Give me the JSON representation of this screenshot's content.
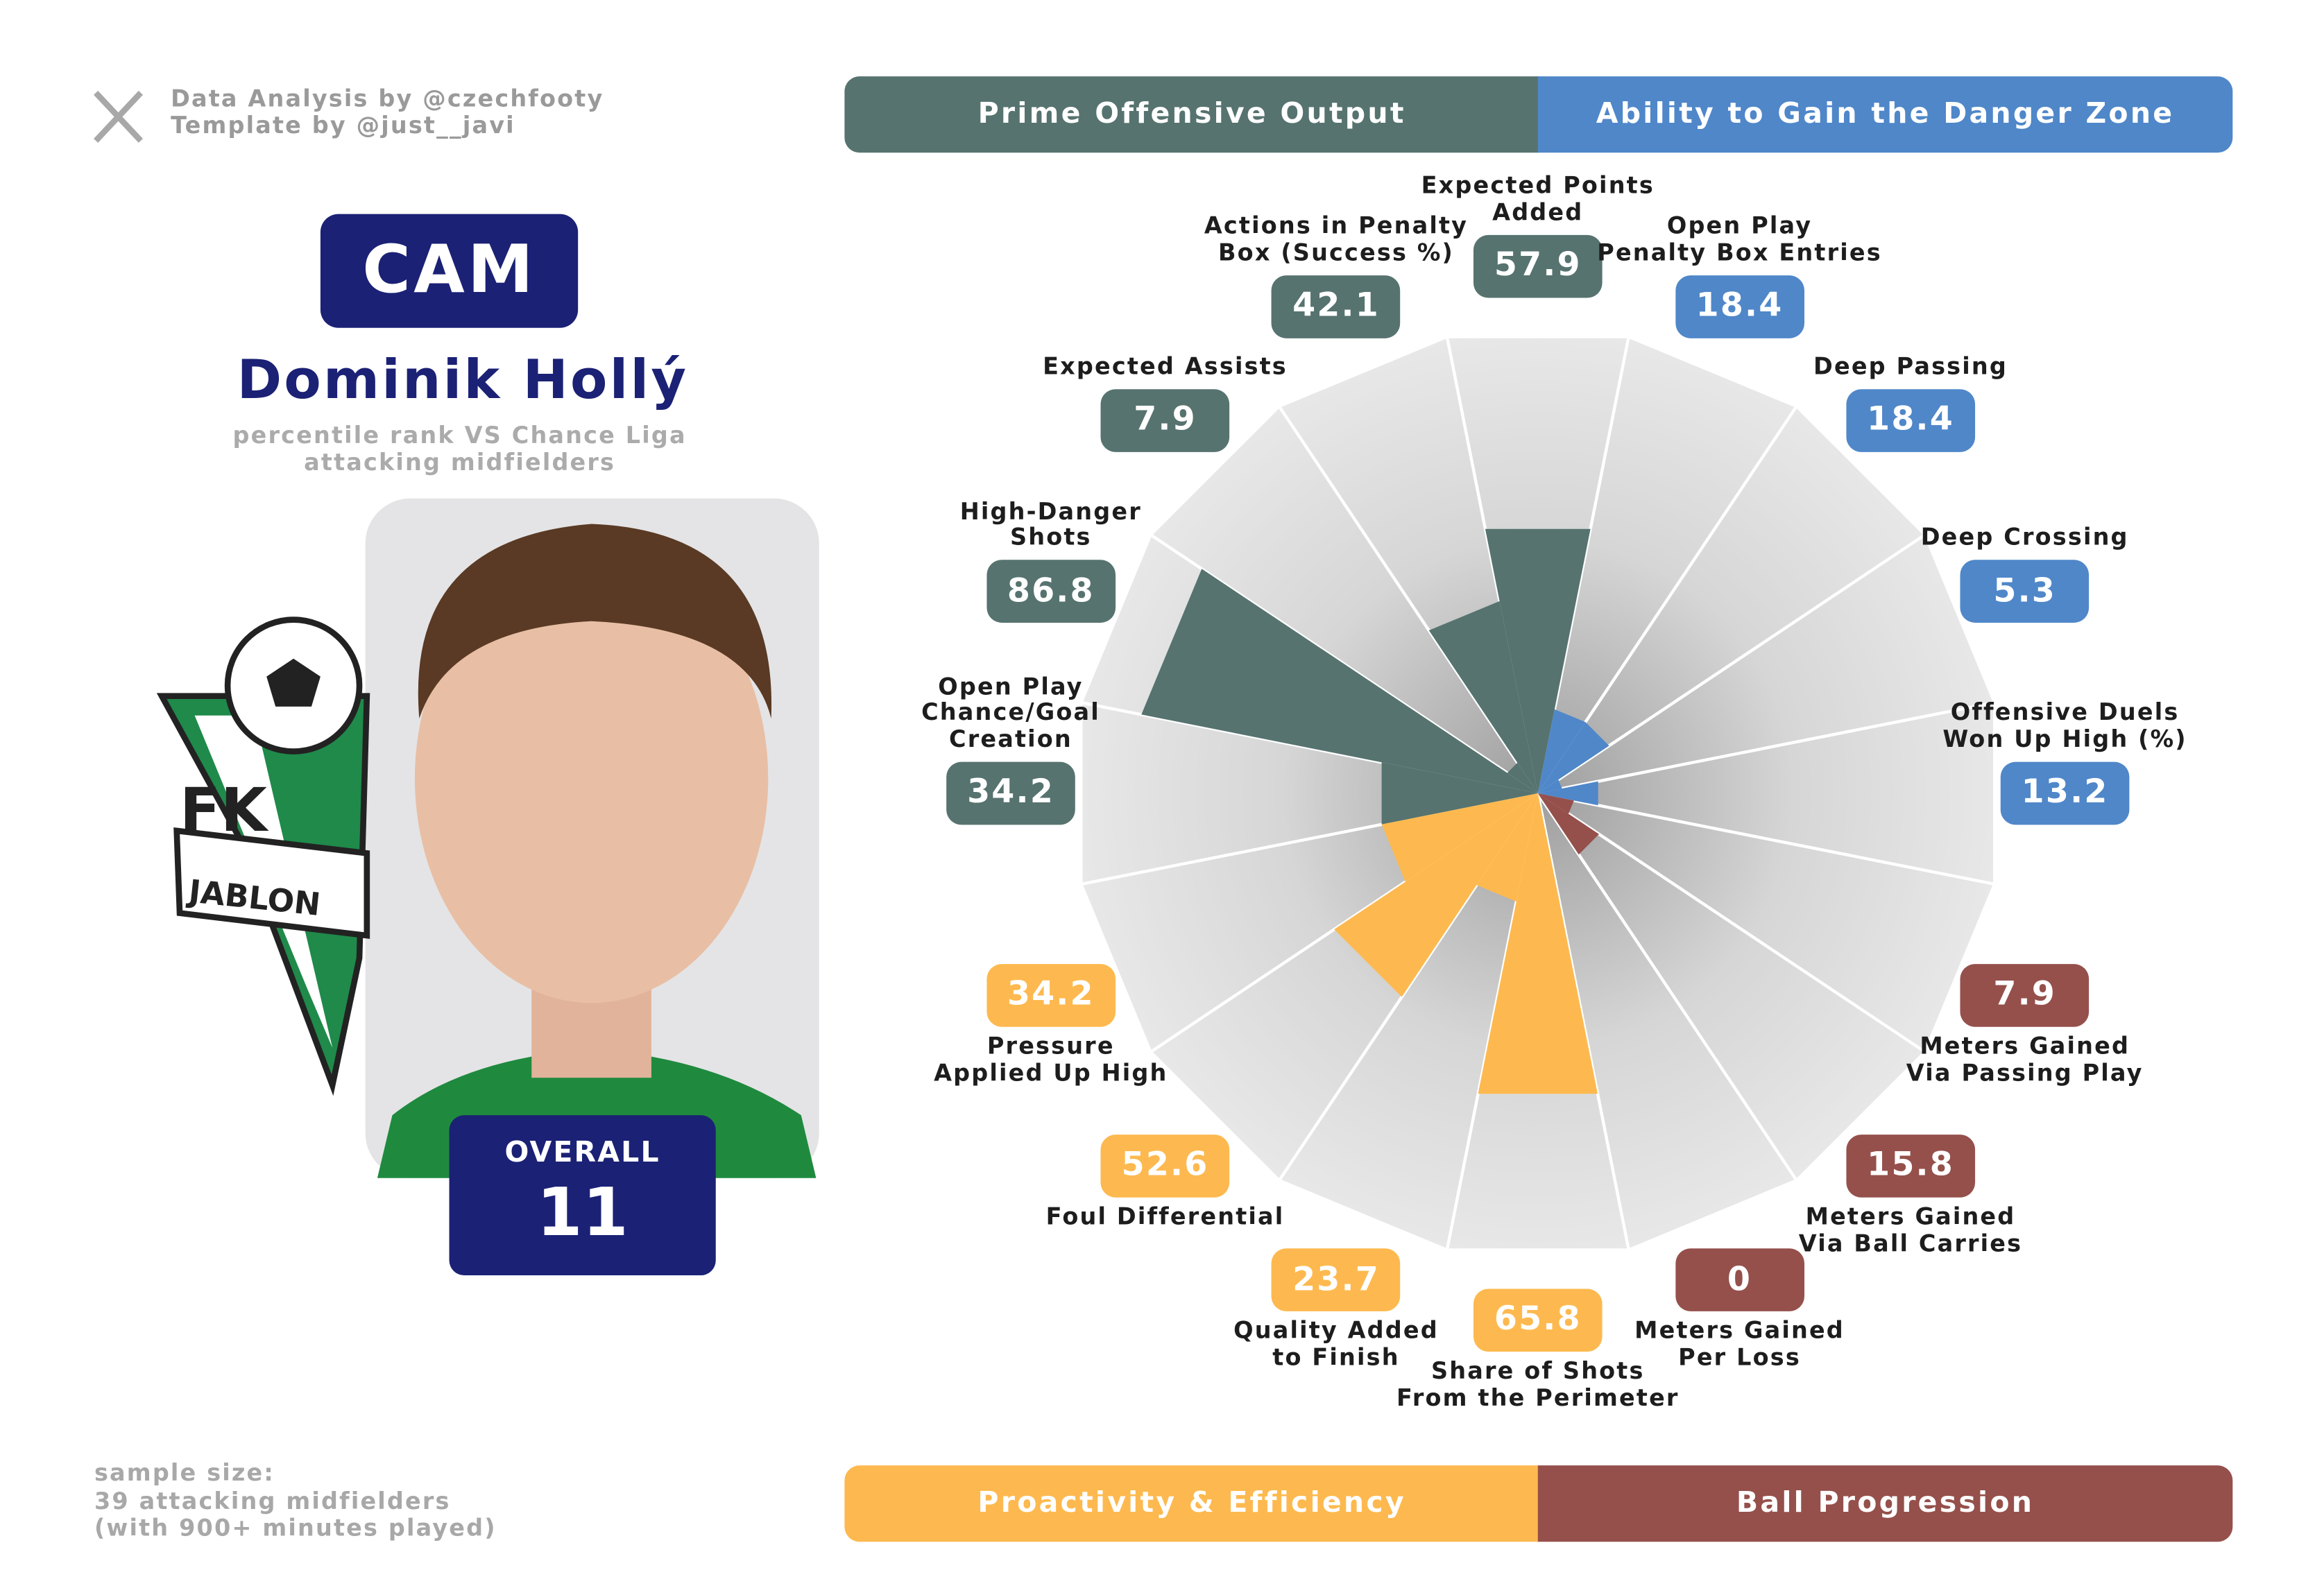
{
  "header": {
    "credits": [
      "Data Analysis by @czechfooty",
      "Template by @just__javi"
    ]
  },
  "player": {
    "position": "CAM",
    "name": "Dominik Hollý",
    "subtitle": "percentile rank VS Chance Liga\nattacking midfielders",
    "overall_label": "OVERALL",
    "overall": 11
  },
  "club_logo": {
    "line1": "FK",
    "line2": "JABLON"
  },
  "footer": {
    "sample": "sample size:\n39 attacking midfielders\n(with 900+ minutes played)"
  },
  "chart_data": {
    "type": "polar_bar",
    "categories": [
      "Expected Points\nAdded",
      "Open Play\nPenalty Box Entries",
      "Deep Passing",
      "Deep Crossing",
      "Offensive Duels\nWon Up High (%)",
      "Meters Gained\nVia Passing Play",
      "Meters Gained\nVia Ball Carries",
      "Meters Gained\nPer Loss",
      "Share of Shots\nFrom the Perimeter",
      "Quality Added\nto Finish",
      "Foul Differential",
      "Pressure\nApplied Up High",
      "Open Play\nChance/Goal\nCreation",
      "High-Danger\nShots",
      "Expected Assists",
      "Actions in Penalty\nBox (Success %)"
    ],
    "series": [
      {
        "name": "Prime Offensive Output",
        "color": "#56736f",
        "values": [
          57.9,
          null,
          null,
          null,
          null,
          null,
          null,
          null,
          null,
          null,
          null,
          null,
          34.2,
          86.8,
          7.9,
          42.1
        ]
      },
      {
        "name": "Ability to Gain the Danger Zone",
        "color": "#4f87c9",
        "values": [
          null,
          18.4,
          18.4,
          5.3,
          13.2,
          null,
          null,
          null,
          null,
          null,
          null,
          null,
          null,
          null,
          null,
          null
        ]
      },
      {
        "name": "Proactivity & Efficiency",
        "color": "#fdb94f",
        "values": [
          null,
          null,
          null,
          null,
          null,
          null,
          null,
          null,
          65.8,
          23.7,
          52.6,
          34.2,
          null,
          null,
          null,
          null
        ]
      },
      {
        "name": "Ball Progression",
        "color": "#95504b",
        "values": [
          null,
          null,
          null,
          null,
          null,
          7.9,
          15.8,
          0,
          null,
          null,
          null,
          null,
          null,
          null,
          null,
          null
        ]
      }
    ],
    "ylim": [
      0,
      100
    ]
  }
}
